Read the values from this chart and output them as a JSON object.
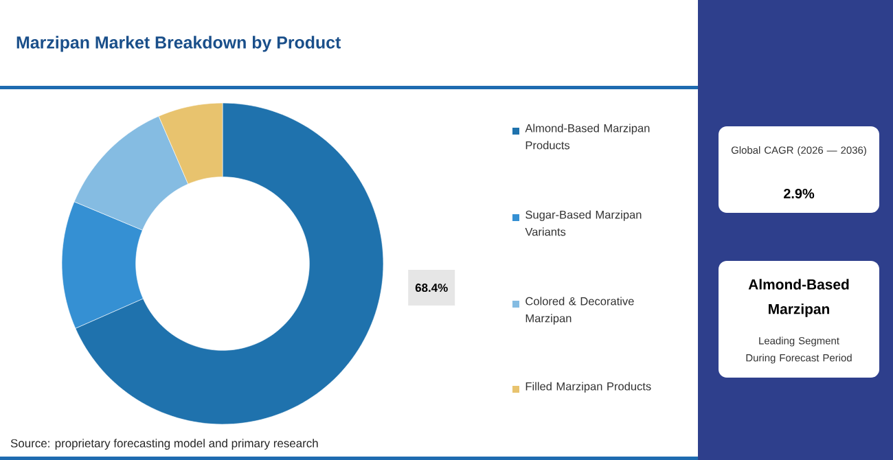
{
  "chart_data": {
    "type": "donut",
    "title": "Marzipan Market Breakdown by Product",
    "categories": [
      "Almond-Based Marzipan Products",
      "Sugar-Based Marzipan Variants",
      "Colored & Decorative Marzipan",
      "Filled Marzipan Products"
    ],
    "values": [
      68.4,
      12.9,
      12.2,
      6.5
    ],
    "colors": [
      "#1f72ad",
      "#3590d3",
      "#85bce2",
      "#e8c36e"
    ],
    "value_labels": [
      "68.4%",
      null,
      null,
      null
    ],
    "legend": "right",
    "annotations": [
      "Source: proprietary forecasting model and primary research",
      "Global CAGR (2026 — 2036)",
      "2.9%",
      "Almond-Based Marzipan",
      "Leading Segment During Forecast Period"
    ]
  }
}
